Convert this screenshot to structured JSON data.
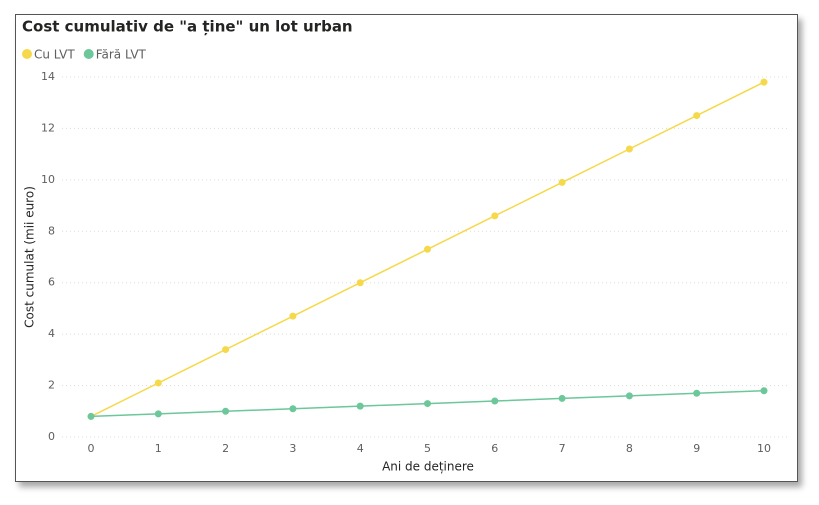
{
  "chart_data": {
    "type": "line",
    "title": "Cost cumulativ de \"a ține\" un lot urban",
    "x_label": "Ani de deținere",
    "y_label": "Cost cumulat (mii euro)",
    "x": [
      0,
      1,
      2,
      3,
      4,
      5,
      6,
      7,
      8,
      9,
      10
    ],
    "series": [
      {
        "name": "Cu LVT",
        "color": "#f5d94a",
        "values": [
          0.8,
          2.1,
          3.4,
          4.7,
          6.0,
          7.3,
          8.6,
          9.9,
          11.2,
          12.5,
          13.8
        ]
      },
      {
        "name": "Fără LVT",
        "color": "#6cc79a",
        "values": [
          0.8,
          0.9,
          1.0,
          1.1,
          1.2,
          1.3,
          1.4,
          1.5,
          1.6,
          1.7,
          1.8
        ]
      }
    ],
    "xlim": [
      0,
      10
    ],
    "xticks": [
      0,
      1,
      2,
      3,
      4,
      5,
      6,
      7,
      8,
      9,
      10
    ],
    "ylim": [
      0,
      14
    ],
    "yticks": [
      0,
      2,
      4,
      6,
      8,
      10,
      12,
      14
    ],
    "grid": true,
    "legend": "top-left"
  }
}
